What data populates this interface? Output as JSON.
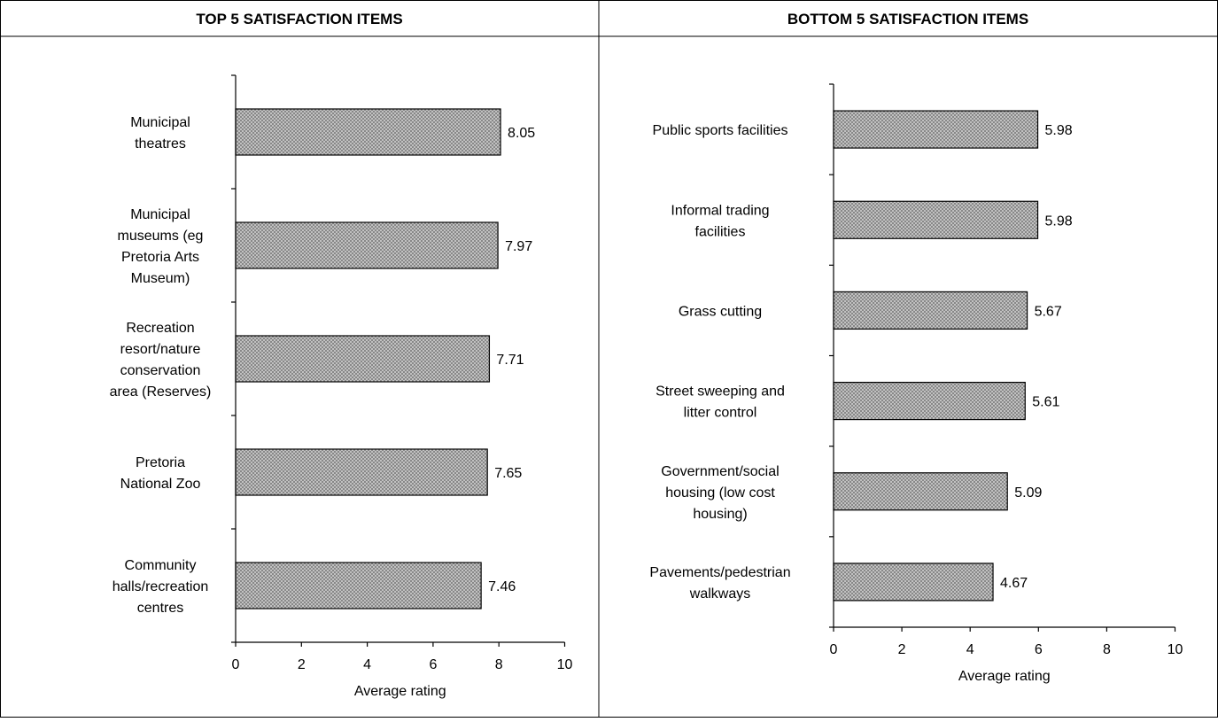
{
  "colors": {
    "bar_fill": "#d0d0d0",
    "bar_hatch": "#7a7a7a",
    "border": "#000000"
  },
  "chart_data": [
    {
      "type": "bar",
      "orientation": "horizontal",
      "title": "TOP 5 SATISFACTION ITEMS",
      "categories": [
        [
          "Municipal",
          "theatres"
        ],
        [
          "Municipal",
          "museums (eg",
          "Pretoria Arts",
          "Museum)"
        ],
        [
          "Recreation",
          "resort/nature",
          "conservation",
          "area (Reserves)"
        ],
        [
          "Pretoria",
          "National Zoo"
        ],
        [
          "Community",
          "halls/recreation",
          "centres"
        ]
      ],
      "values": [
        8.05,
        7.97,
        7.71,
        7.65,
        7.46
      ],
      "data_labels": [
        "8.05",
        "7.97",
        "7.71",
        "7.65",
        "7.46"
      ],
      "xlabel": "Average rating",
      "xlim": [
        0,
        10
      ],
      "xticks": [
        "0",
        "2",
        "4",
        "6",
        "8",
        "10"
      ],
      "grid": false,
      "legend": "none"
    },
    {
      "type": "bar",
      "orientation": "horizontal",
      "title": "BOTTOM 5 SATISFACTION ITEMS",
      "categories": [
        [
          "Public sports facilities"
        ],
        [
          "Informal trading",
          "facilities"
        ],
        [
          "Grass cutting"
        ],
        [
          "Street sweeping and",
          "litter control"
        ],
        [
          "Government/social",
          "housing (low cost",
          "housing)"
        ],
        [
          "Pavements/pedestrian",
          "walkways"
        ]
      ],
      "values": [
        5.98,
        5.98,
        5.67,
        5.61,
        5.09,
        4.67
      ],
      "data_labels": [
        "5.98",
        "5.98",
        "5.67",
        "5.61",
        "5.09",
        "4.67"
      ],
      "xlabel": "Average rating",
      "xlim": [
        0,
        10
      ],
      "xticks": [
        "0",
        "2",
        "4",
        "6",
        "8",
        "10"
      ],
      "grid": false,
      "legend": "none"
    }
  ]
}
